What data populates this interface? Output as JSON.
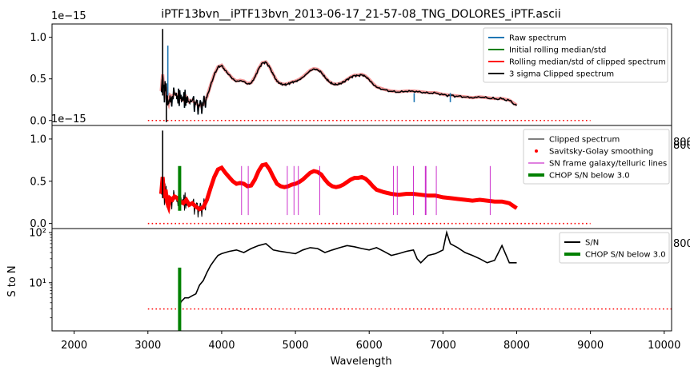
{
  "figure": {
    "title": "iPTF13bvn__iPTF13bvn_2013-06-17_21-57-08_TNG_DOLORES_iPTF.ascii",
    "xlabel": "Wavelength",
    "x_ticks": [
      "2000",
      "3000",
      "4000",
      "5000",
      "6000",
      "7000",
      "8000",
      "9000",
      "10000"
    ],
    "offset_top": "1e−15",
    "offset_mid": "1e−15",
    "stray_tick_top": "800",
    "stray_tick_mid": "800",
    "stray_tick_bot": "800"
  },
  "colors": {
    "raw": "#1f77b4",
    "initial": "#008000",
    "clipped_median": "#ff0000",
    "clipped": "#000000",
    "lines": "#bf00bf",
    "chop": "#008000",
    "threshold": "#ff0000"
  },
  "chart_data": [
    {
      "type": "line",
      "panel": "top",
      "xlim": [
        1700,
        10100
      ],
      "ylim": [
        -0.06,
        1.16
      ],
      "y_ticks": [
        "0.0",
        "0.5",
        "1.0"
      ],
      "y_tick_values": [
        0.0,
        0.5,
        1.0
      ],
      "y_scale": "1e-15",
      "legend": [
        "Raw spectrum",
        "Initial rolling median/std",
        "Rolling median/std of clipped spectrum",
        "3 sigma Clipped spectrum"
      ],
      "legend_position": "top-right",
      "threshold": {
        "x": [
          3000,
          9000
        ],
        "y": 0.0
      },
      "spectrum": {
        "x": [
          3180,
          3200,
          3220,
          3240,
          3260,
          3280,
          3300,
          3330,
          3360,
          3400,
          3440,
          3480,
          3520,
          3560,
          3600,
          3650,
          3700,
          3750,
          3800,
          3850,
          3900,
          3950,
          4000,
          4050,
          4100,
          4150,
          4200,
          4250,
          4300,
          4350,
          4400,
          4450,
          4500,
          4550,
          4600,
          4650,
          4700,
          4750,
          4800,
          4850,
          4900,
          4950,
          5000,
          5050,
          5100,
          5150,
          5200,
          5250,
          5300,
          5350,
          5400,
          5450,
          5500,
          5550,
          5600,
          5650,
          5700,
          5750,
          5800,
          5850,
          5900,
          5950,
          6000,
          6050,
          6100,
          6200,
          6300,
          6400,
          6500,
          6600,
          6700,
          6800,
          6900,
          7000,
          7100,
          7200,
          7300,
          7400,
          7500,
          7600,
          7700,
          7800,
          7900,
          8000
        ],
        "y": [
          0.35,
          0.55,
          0.3,
          0.4,
          0.25,
          0.2,
          0.3,
          0.28,
          0.32,
          0.3,
          0.26,
          0.24,
          0.28,
          0.22,
          0.24,
          0.2,
          0.17,
          0.19,
          0.28,
          0.42,
          0.55,
          0.64,
          0.66,
          0.6,
          0.55,
          0.5,
          0.47,
          0.48,
          0.47,
          0.44,
          0.45,
          0.52,
          0.62,
          0.69,
          0.7,
          0.64,
          0.55,
          0.47,
          0.44,
          0.43,
          0.44,
          0.46,
          0.47,
          0.49,
          0.52,
          0.56,
          0.6,
          0.62,
          0.61,
          0.58,
          0.52,
          0.47,
          0.44,
          0.43,
          0.44,
          0.46,
          0.49,
          0.52,
          0.54,
          0.54,
          0.55,
          0.53,
          0.49,
          0.44,
          0.4,
          0.37,
          0.35,
          0.34,
          0.35,
          0.35,
          0.34,
          0.33,
          0.33,
          0.31,
          0.3,
          0.29,
          0.28,
          0.27,
          0.28,
          0.27,
          0.26,
          0.26,
          0.24,
          0.18
        ]
      }
    },
    {
      "type": "line",
      "panel": "middle",
      "xlim": [
        1700,
        10100
      ],
      "ylim": [
        -0.06,
        1.16
      ],
      "y_ticks": [
        "0.0",
        "0.5",
        "1.0"
      ],
      "y_tick_values": [
        0.0,
        0.5,
        1.0
      ],
      "y_scale": "1e-15",
      "legend": [
        "Clipped spectrum",
        "Savitsky-Golay smoothing",
        "SN frame galaxy/telluric lines",
        "CHOP S/N below 3.0"
      ],
      "legend_position": "top-right",
      "threshold": {
        "x": [
          3000,
          9000
        ],
        "y": 0.0
      },
      "line_positions": [
        4270,
        4360,
        4890,
        4980,
        5040,
        5330,
        6330,
        6380,
        6600,
        6760,
        6770,
        6910,
        7640
      ],
      "chop_x": 3430,
      "chop_range": [
        0.15,
        0.68
      ]
    },
    {
      "type": "line",
      "panel": "bottom",
      "ylabel": "S to N",
      "xlim": [
        1700,
        10100
      ],
      "y_scale_type": "log",
      "ylim": [
        1.1,
        120
      ],
      "y_ticks": [
        "10¹",
        "10²"
      ],
      "y_tick_values": [
        10,
        100
      ],
      "legend": [
        "S/N",
        "CHOP S/N below 3.0"
      ],
      "legend_position": "top-right",
      "threshold": {
        "x": [
          3000,
          10100
        ],
        "y": 3.0
      },
      "chop_x": 3430,
      "chop_range": [
        1.1,
        20
      ],
      "sn": {
        "x": [
          3430,
          3450,
          3500,
          3550,
          3600,
          3650,
          3700,
          3750,
          3800,
          3850,
          3900,
          3950,
          4000,
          4100,
          4200,
          4300,
          4400,
          4500,
          4600,
          4700,
          4800,
          4900,
          5000,
          5100,
          5200,
          5300,
          5400,
          5500,
          5600,
          5700,
          5800,
          5900,
          6000,
          6100,
          6200,
          6300,
          6400,
          6500,
          6600,
          6650,
          6700,
          6800,
          6900,
          7000,
          7050,
          7100,
          7200,
          7300,
          7400,
          7500,
          7600,
          7700,
          7800,
          7900,
          8000
        ],
        "y": [
          3.5,
          4.2,
          5,
          5,
          5.5,
          6,
          9,
          11,
          16,
          22,
          28,
          35,
          38,
          42,
          45,
          40,
          48,
          55,
          60,
          45,
          42,
          40,
          38,
          45,
          50,
          48,
          40,
          45,
          50,
          55,
          52,
          48,
          45,
          50,
          42,
          35,
          38,
          42,
          45,
          30,
          25,
          35,
          38,
          45,
          100,
          60,
          50,
          40,
          35,
          30,
          25,
          28,
          55,
          25,
          25
        ]
      }
    }
  ]
}
